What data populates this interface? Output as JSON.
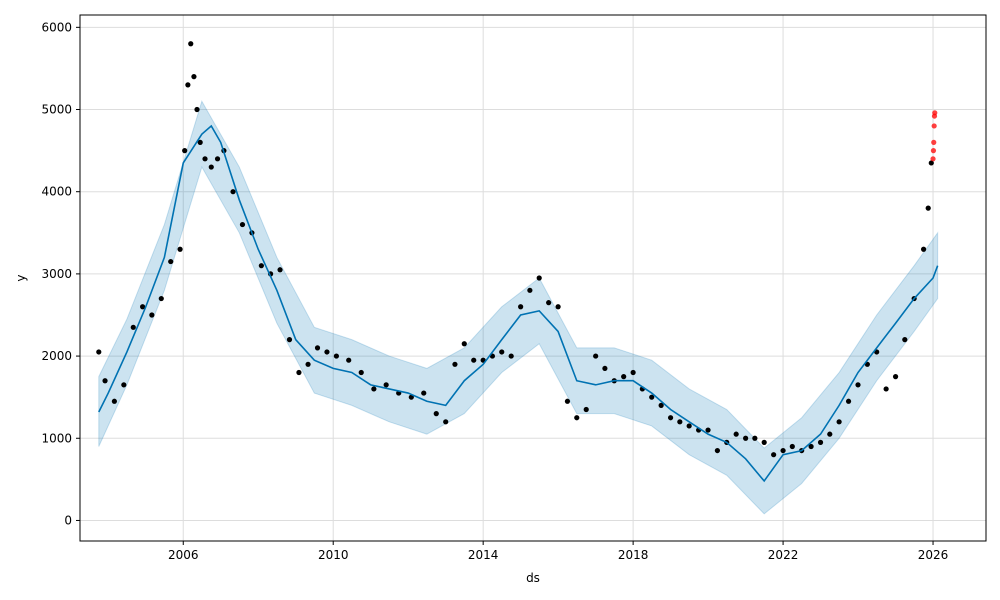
{
  "chart_data": {
    "type": "scatter",
    "title": "",
    "xlabel": "ds",
    "ylabel": "y",
    "xlim": [
      "2003-04-01",
      "2027-06-01"
    ],
    "ylim": [
      -250,
      6150
    ],
    "x_ticks": [
      "2006",
      "2010",
      "2014",
      "2018",
      "2022",
      "2026"
    ],
    "y_ticks": [
      0,
      1000,
      2000,
      3000,
      4000,
      5000,
      6000
    ],
    "grid": true,
    "legend": "none",
    "colors": {
      "observed": "#000000",
      "future": "#ff0000",
      "forecast": "#0072B2",
      "interval": "#0072B2"
    },
    "series": [
      {
        "kind": "observed points",
        "points": [
          [
            "2003-10-01",
            2050
          ],
          [
            "2003-12-01",
            1700
          ],
          [
            "2004-03-01",
            1450
          ],
          [
            "2004-06-01",
            1650
          ],
          [
            "2004-09-01",
            2350
          ],
          [
            "2004-12-01",
            2600
          ],
          [
            "2005-03-01",
            2500
          ],
          [
            "2005-06-01",
            2700
          ],
          [
            "2005-09-01",
            3150
          ],
          [
            "2005-12-01",
            3300
          ],
          [
            "2006-01-15",
            4500
          ],
          [
            "2006-02-15",
            5300
          ],
          [
            "2006-03-15",
            5800
          ],
          [
            "2006-04-15",
            5400
          ],
          [
            "2006-05-15",
            5000
          ],
          [
            "2006-06-15",
            4600
          ],
          [
            "2006-08-01",
            4400
          ],
          [
            "2006-10-01",
            4300
          ],
          [
            "2006-12-01",
            4400
          ],
          [
            "2007-02-01",
            4500
          ],
          [
            "2007-05-01",
            4000
          ],
          [
            "2007-08-01",
            3600
          ],
          [
            "2007-11-01",
            3500
          ],
          [
            "2008-02-01",
            3100
          ],
          [
            "2008-05-01",
            3000
          ],
          [
            "2008-08-01",
            3050
          ],
          [
            "2008-11-01",
            2200
          ],
          [
            "2009-02-01",
            1800
          ],
          [
            "2009-05-01",
            1900
          ],
          [
            "2009-08-01",
            2100
          ],
          [
            "2009-11-01",
            2050
          ],
          [
            "2010-02-01",
            2000
          ],
          [
            "2010-06-01",
            1950
          ],
          [
            "2010-10-01",
            1800
          ],
          [
            "2011-02-01",
            1600
          ],
          [
            "2011-06-01",
            1650
          ],
          [
            "2011-10-01",
            1550
          ],
          [
            "2012-02-01",
            1500
          ],
          [
            "2012-06-01",
            1550
          ],
          [
            "2012-10-01",
            1300
          ],
          [
            "2013-01-01",
            1200
          ],
          [
            "2013-04-01",
            1900
          ],
          [
            "2013-07-01",
            2150
          ],
          [
            "2013-10-01",
            1950
          ],
          [
            "2014-01-01",
            1950
          ],
          [
            "2014-04-01",
            2000
          ],
          [
            "2014-07-01",
            2050
          ],
          [
            "2014-10-01",
            2000
          ],
          [
            "2015-01-01",
            2600
          ],
          [
            "2015-04-01",
            2800
          ],
          [
            "2015-07-01",
            2950
          ],
          [
            "2015-10-01",
            2650
          ],
          [
            "2016-01-01",
            2600
          ],
          [
            "2016-04-01",
            1450
          ],
          [
            "2016-07-01",
            1250
          ],
          [
            "2016-10-01",
            1350
          ],
          [
            "2017-01-01",
            2000
          ],
          [
            "2017-04-01",
            1850
          ],
          [
            "2017-07-01",
            1700
          ],
          [
            "2017-10-01",
            1750
          ],
          [
            "2018-01-01",
            1800
          ],
          [
            "2018-04-01",
            1600
          ],
          [
            "2018-07-01",
            1500
          ],
          [
            "2018-10-01",
            1400
          ],
          [
            "2019-01-01",
            1250
          ],
          [
            "2019-04-01",
            1200
          ],
          [
            "2019-07-01",
            1150
          ],
          [
            "2019-10-01",
            1100
          ],
          [
            "2020-01-01",
            1100
          ],
          [
            "2020-04-01",
            850
          ],
          [
            "2020-07-01",
            950
          ],
          [
            "2020-10-01",
            1050
          ],
          [
            "2021-01-01",
            1000
          ],
          [
            "2021-04-01",
            1000
          ],
          [
            "2021-07-01",
            950
          ],
          [
            "2021-10-01",
            800
          ],
          [
            "2022-01-01",
            850
          ],
          [
            "2022-04-01",
            900
          ],
          [
            "2022-07-01",
            850
          ],
          [
            "2022-10-01",
            900
          ],
          [
            "2023-01-01",
            950
          ],
          [
            "2023-04-01",
            1050
          ],
          [
            "2023-07-01",
            1200
          ],
          [
            "2023-10-01",
            1450
          ],
          [
            "2024-01-01",
            1650
          ],
          [
            "2024-04-01",
            1900
          ],
          [
            "2024-07-01",
            2050
          ],
          [
            "2024-10-01",
            1600
          ],
          [
            "2025-01-01",
            1750
          ],
          [
            "2025-04-01",
            2200
          ],
          [
            "2025-07-01",
            2700
          ],
          [
            "2025-10-01",
            3300
          ],
          [
            "2025-11-15",
            3800
          ],
          [
            "2025-12-15",
            4350
          ]
        ]
      },
      {
        "kind": "future points",
        "points": [
          [
            "2026-01-01",
            4400
          ],
          [
            "2026-01-05",
            4500
          ],
          [
            "2026-01-08",
            4600
          ],
          [
            "2026-01-12",
            4800
          ],
          [
            "2026-01-15",
            4920
          ],
          [
            "2026-01-18",
            4960
          ]
        ]
      },
      {
        "kind": "forecast line",
        "points": [
          [
            "2003-10-01",
            1320
          ],
          [
            "2004-01-01",
            1550
          ],
          [
            "2004-07-01",
            2050
          ],
          [
            "2005-01-01",
            2600
          ],
          [
            "2005-07-01",
            3200
          ],
          [
            "2006-01-01",
            4350
          ],
          [
            "2006-07-01",
            4700
          ],
          [
            "2006-10-01",
            4800
          ],
          [
            "2007-01-01",
            4600
          ],
          [
            "2007-07-01",
            3900
          ],
          [
            "2008-01-01",
            3300
          ],
          [
            "2008-07-01",
            2800
          ],
          [
            "2009-01-01",
            2200
          ],
          [
            "2009-07-01",
            1950
          ],
          [
            "2010-01-01",
            1850
          ],
          [
            "2010-07-01",
            1800
          ],
          [
            "2011-01-01",
            1650
          ],
          [
            "2011-07-01",
            1600
          ],
          [
            "2012-01-01",
            1550
          ],
          [
            "2012-07-01",
            1450
          ],
          [
            "2013-01-01",
            1400
          ],
          [
            "2013-07-01",
            1700
          ],
          [
            "2014-01-01",
            1900
          ],
          [
            "2014-07-01",
            2200
          ],
          [
            "2015-01-01",
            2500
          ],
          [
            "2015-07-01",
            2550
          ],
          [
            "2016-01-01",
            2300
          ],
          [
            "2016-07-01",
            1700
          ],
          [
            "2017-01-01",
            1650
          ],
          [
            "2017-07-01",
            1700
          ],
          [
            "2018-01-01",
            1700
          ],
          [
            "2018-07-01",
            1550
          ],
          [
            "2019-01-01",
            1350
          ],
          [
            "2019-07-01",
            1200
          ],
          [
            "2020-01-01",
            1050
          ],
          [
            "2020-07-01",
            950
          ],
          [
            "2021-01-01",
            750
          ],
          [
            "2021-07-01",
            480
          ],
          [
            "2022-01-01",
            800
          ],
          [
            "2022-07-01",
            850
          ],
          [
            "2023-01-01",
            1050
          ],
          [
            "2023-07-01",
            1400
          ],
          [
            "2024-01-01",
            1800
          ],
          [
            "2024-07-01",
            2100
          ],
          [
            "2025-01-01",
            2400
          ],
          [
            "2025-07-01",
            2700
          ],
          [
            "2026-01-01",
            2950
          ],
          [
            "2026-02-15",
            3100
          ]
        ]
      },
      {
        "kind": "uncertainty interval",
        "points": [
          [
            "2003-10-01",
            900,
            1750
          ],
          [
            "2004-07-01",
            1650,
            2450
          ],
          [
            "2005-07-01",
            2800,
            3600
          ],
          [
            "2006-07-01",
            4300,
            5100
          ],
          [
            "2007-07-01",
            3500,
            4300
          ],
          [
            "2008-07-01",
            2400,
            3200
          ],
          [
            "2009-07-01",
            1550,
            2350
          ],
          [
            "2010-07-01",
            1400,
            2200
          ],
          [
            "2011-07-01",
            1200,
            2000
          ],
          [
            "2012-07-01",
            1050,
            1850
          ],
          [
            "2013-07-01",
            1300,
            2100
          ],
          [
            "2014-07-01",
            1800,
            2600
          ],
          [
            "2015-07-01",
            2150,
            2950
          ],
          [
            "2016-07-01",
            1300,
            2100
          ],
          [
            "2017-07-01",
            1300,
            2100
          ],
          [
            "2018-07-01",
            1150,
            1950
          ],
          [
            "2019-07-01",
            800,
            1600
          ],
          [
            "2020-07-01",
            550,
            1350
          ],
          [
            "2021-07-01",
            80,
            880
          ],
          [
            "2022-07-01",
            450,
            1250
          ],
          [
            "2023-07-01",
            1000,
            1800
          ],
          [
            "2024-07-01",
            1700,
            2500
          ],
          [
            "2025-07-01",
            2300,
            3100
          ],
          [
            "2026-02-15",
            2700,
            3500
          ]
        ]
      }
    ]
  }
}
